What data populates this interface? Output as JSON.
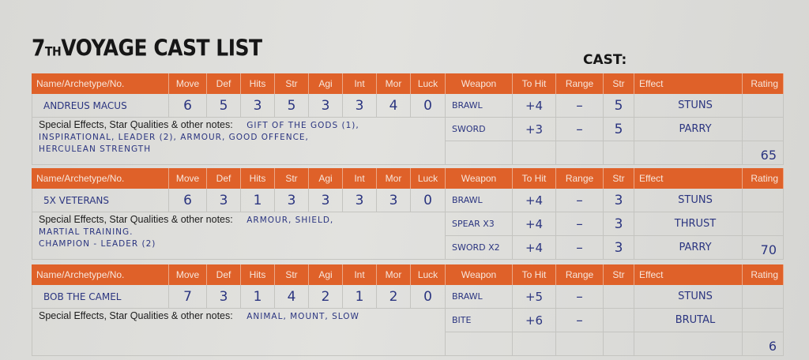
{
  "title": {
    "prefix": "7",
    "th": "TH",
    "main": "VOYAGE CAST LIST"
  },
  "cast_label": "CAST:",
  "header": {
    "name": "Name/Archetype/No.",
    "stats": [
      "Move",
      "Def",
      "Hits",
      "Str",
      "Agi",
      "Int",
      "Mor",
      "Luck"
    ],
    "weapon": "Weapon",
    "to_hit": "To Hit",
    "range": "Range",
    "str": "Str",
    "effect": "Effect",
    "rating": "Rating"
  },
  "notes_label": "Special Effects, Star Qualities & other notes:",
  "colors": {
    "header": "#df6129",
    "ink": "#2b3580",
    "paper": "#dcdcd9"
  },
  "cast": [
    {
      "name": "Andreus Macus",
      "stats": [
        "6",
        "5",
        "3",
        "5",
        "3",
        "3",
        "4",
        "0"
      ],
      "notes": [
        "Gift of the Gods (1),",
        "Inspirational, Leader (2), Armour, Good Offence,",
        "Herculean Strength"
      ],
      "weapons": [
        {
          "weapon": "Brawl",
          "to_hit": "+4",
          "range": "–",
          "str": "5",
          "effect": "Stuns"
        },
        {
          "weapon": "Sword",
          "to_hit": "+3",
          "range": "–",
          "str": "5",
          "effect": "Parry"
        },
        {
          "weapon": "",
          "to_hit": "",
          "range": "",
          "str": "",
          "effect": ""
        }
      ],
      "rating": "65"
    },
    {
      "name": "5x Veterans",
      "stats": [
        "6",
        "3",
        "1",
        "3",
        "3",
        "3",
        "3",
        "0"
      ],
      "notes": [
        "Armour, Shield,",
        "Martial Training.",
        "Champion - Leader (2)"
      ],
      "weapons": [
        {
          "weapon": "Brawl",
          "to_hit": "+4",
          "range": "–",
          "str": "3",
          "effect": "Stuns"
        },
        {
          "weapon": "Spear x3",
          "to_hit": "+4",
          "range": "–",
          "str": "3",
          "effect": "Thrust"
        },
        {
          "weapon": "Sword x2",
          "to_hit": "+4",
          "range": "–",
          "str": "3",
          "effect": "Parry"
        }
      ],
      "rating": "70"
    },
    {
      "name": "Bob the Camel",
      "stats": [
        "7",
        "3",
        "1",
        "4",
        "2",
        "1",
        "2",
        "0"
      ],
      "notes": [
        "Animal, Mount, Slow",
        "",
        ""
      ],
      "weapons": [
        {
          "weapon": "Brawl",
          "to_hit": "+5",
          "range": "–",
          "str": "",
          "effect": "Stuns"
        },
        {
          "weapon": "Bite",
          "to_hit": "+6",
          "range": "–",
          "str": "",
          "effect": "Brutal"
        },
        {
          "weapon": "",
          "to_hit": "",
          "range": "",
          "str": "",
          "effect": ""
        }
      ],
      "rating": "6"
    }
  ]
}
